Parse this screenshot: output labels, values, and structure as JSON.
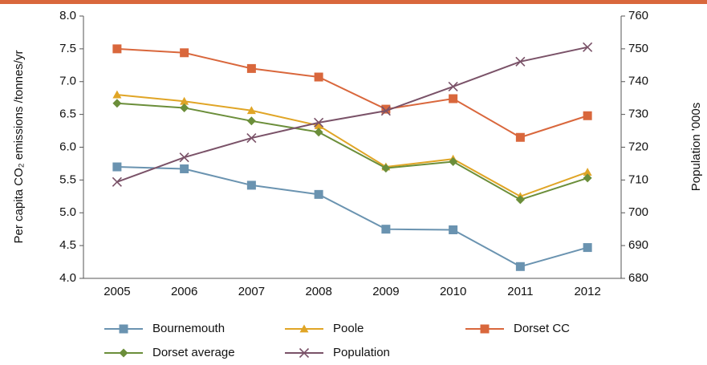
{
  "chart_data": {
    "type": "line",
    "y_label": "Per capita CO₂ emissions /tonnes/yr",
    "y2_label": "Population '000s",
    "categories": [
      "2005",
      "2006",
      "2007",
      "2008",
      "2009",
      "2010",
      "2011",
      "2012"
    ],
    "ylim": [
      4.0,
      8.0
    ],
    "yticks": [
      {
        "value": 4.0,
        "label": "4.0"
      },
      4.5,
      {
        "value": 5.0,
        "label": "5.0"
      },
      5.5,
      {
        "value": 6.0,
        "label": "6.0"
      },
      6.5,
      {
        "value": 7.0,
        "label": "7.0"
      },
      7.5,
      {
        "value": 8.0,
        "label": "8.0"
      }
    ],
    "y2lim": [
      680,
      760
    ],
    "y2ticks": [
      680,
      690,
      700,
      710,
      720,
      730,
      740,
      750,
      760
    ],
    "grid": false,
    "legend": "bottom",
    "series": [
      {
        "name": "Bournemouth",
        "color": "#6a93b0",
        "marker": "square",
        "values": [
          5.7,
          5.67,
          5.42,
          5.28,
          4.75,
          4.74,
          4.18,
          4.47
        ]
      },
      {
        "name": "Poole",
        "color": "#e0a526",
        "marker": "triangle",
        "values": [
          6.8,
          6.7,
          6.56,
          6.33,
          5.7,
          5.82,
          5.25,
          5.62
        ]
      },
      {
        "name": "Dorset CC",
        "color": "#d9673c",
        "marker": "square",
        "values": [
          7.5,
          7.44,
          7.2,
          7.07,
          6.58,
          6.74,
          6.15,
          6.48
        ]
      },
      {
        "name": "Dorset average",
        "color": "#6b8e3a",
        "marker": "diamond",
        "values": [
          6.67,
          6.6,
          6.4,
          6.23,
          5.68,
          5.78,
          5.2,
          5.53
        ]
      },
      {
        "name": "Population",
        "color": "#7a5268",
        "marker": "x",
        "axis": "y2",
        "values": [
          709.4,
          716.9,
          722.8,
          727.5,
          731.1,
          738.5,
          746.1,
          750.5
        ]
      }
    ]
  }
}
